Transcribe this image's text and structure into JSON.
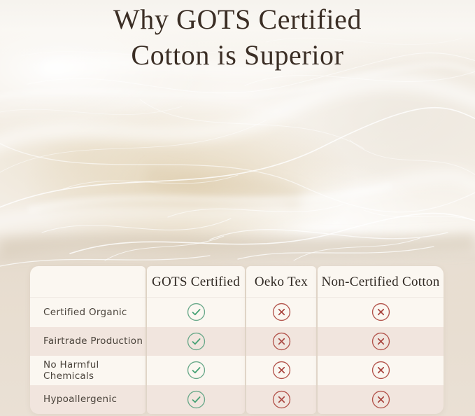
{
  "title": {
    "line1": "Why GOTS Certified",
    "line2": "Cotton is Superior"
  },
  "comparison": {
    "columns": [
      {
        "label": "GOTS Certified"
      },
      {
        "label": "Oeko Tex"
      },
      {
        "label": "Non-Certified Cotton"
      }
    ],
    "rows": [
      {
        "label": "Certified Organic",
        "values": [
          true,
          false,
          false
        ]
      },
      {
        "label": "Fairtrade Production",
        "values": [
          true,
          false,
          false
        ]
      },
      {
        "label": "No Harmful Chemicals",
        "values": [
          true,
          false,
          false
        ]
      },
      {
        "label": "Hypoallergenic",
        "values": [
          true,
          false,
          false
        ]
      }
    ],
    "icon_legend": {
      "true": "green check in circle",
      "false": "red cross in circle"
    }
  },
  "colors": {
    "title_text": "#3B2E25",
    "header_text": "#2F2822",
    "label_text": "#4B443C",
    "card_bg": "#FBF7F1",
    "stripe_bg": "#F1E5DE",
    "check_circle": "#6AA98A",
    "check_mark": "#43A173",
    "cross_circle": "#B3544C",
    "cross_mark": "#A8443E"
  },
  "chart_data": {
    "type": "table",
    "title": "Why GOTS Certified Cotton is Superior",
    "columns": [
      "",
      "GOTS Certified",
      "Oeko Tex",
      "Non-Certified Cotton"
    ],
    "rows": [
      [
        "Certified Organic",
        "yes",
        "no",
        "no"
      ],
      [
        "Fairtrade Production",
        "yes",
        "no",
        "no"
      ],
      [
        "No Harmful Chemicals",
        "yes",
        "no",
        "no"
      ],
      [
        "Hypoallergenic",
        "yes",
        "no",
        "no"
      ]
    ],
    "legend": {
      "yes": "green circled check mark",
      "no": "red circled cross mark"
    },
    "layout": "row labels on left, three certification columns, alternating cream/pink row stripes over cotton photo background"
  }
}
